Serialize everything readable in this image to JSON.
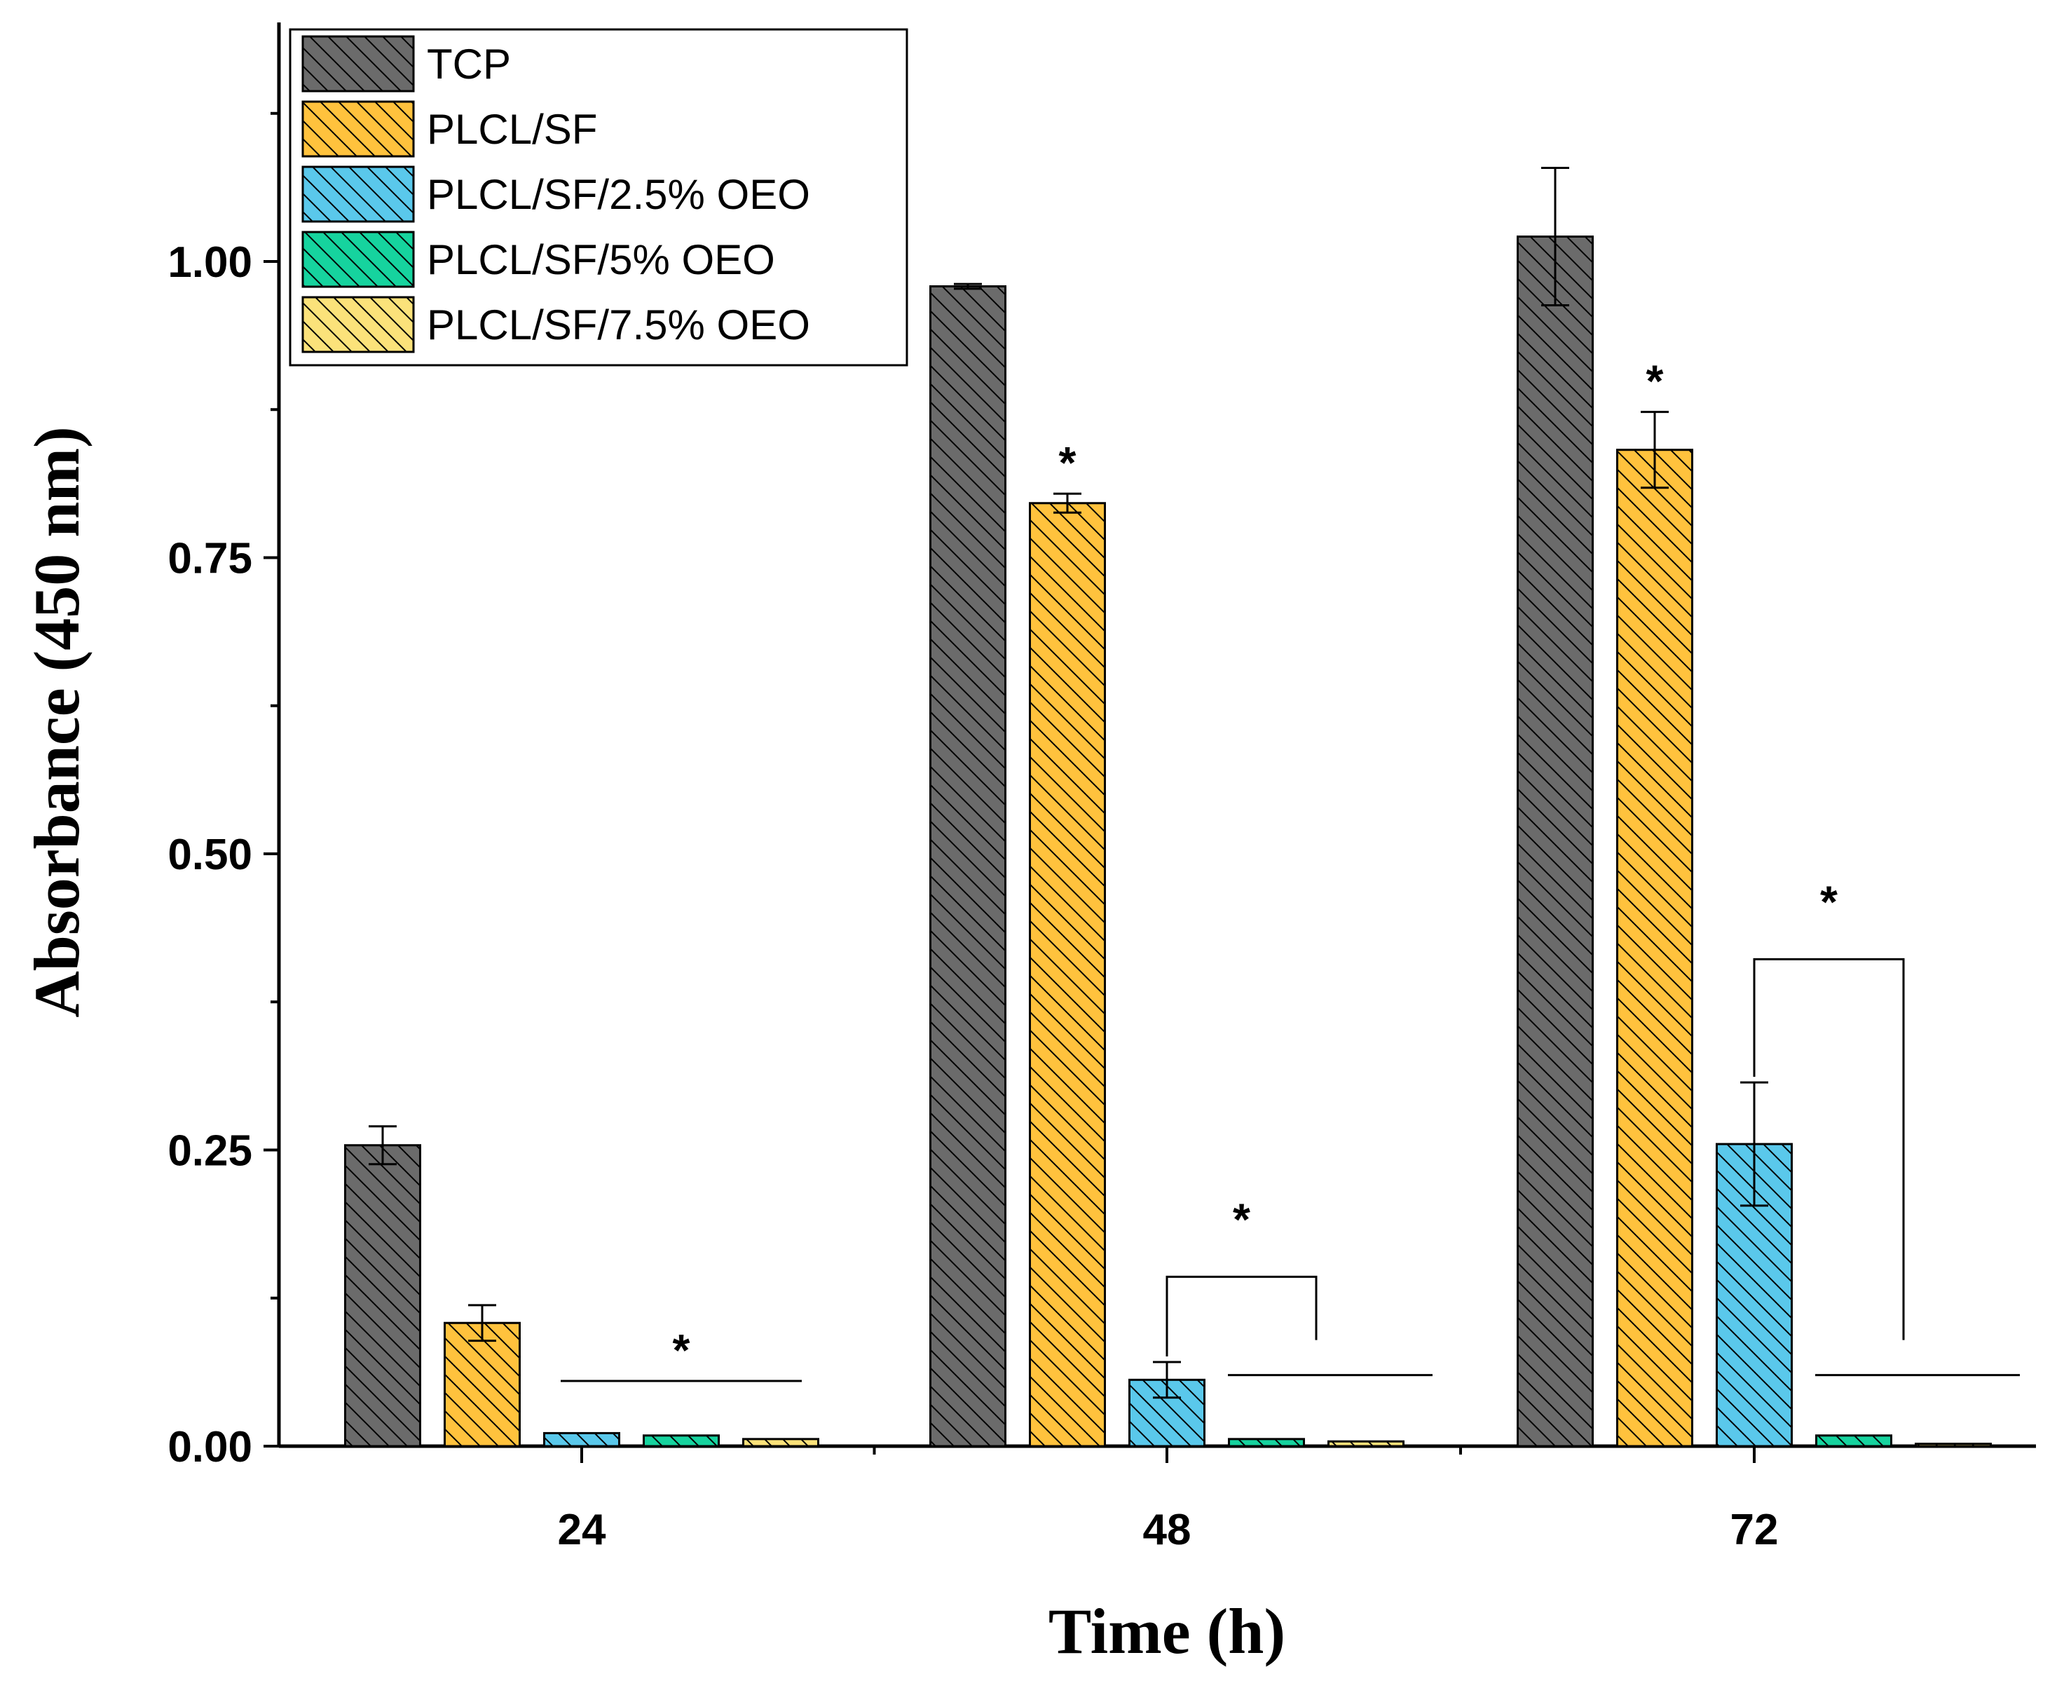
{
  "chart_data": {
    "type": "bar",
    "xlabel": "Time (h)",
    "ylabel": "Absorbance (450 nm)",
    "ylim": [
      0,
      1.2
    ],
    "yticks": [
      "0.00",
      "0.25",
      "0.50",
      "0.75",
      "1.00"
    ],
    "categories": [
      "24",
      "48",
      "72"
    ],
    "legend_position": "top-left",
    "series": [
      {
        "name": "TCP",
        "color": "#6b6b6b",
        "values": [
          0.254,
          0.979,
          1.021
        ],
        "errors": [
          0.016,
          0.002,
          0.058
        ]
      },
      {
        "name": "PLCL/SF",
        "color": "#ffc23d",
        "values": [
          0.104,
          0.796,
          0.841
        ],
        "errors": [
          0.015,
          0.008,
          0.032
        ]
      },
      {
        "name": "PLCL/SF/2.5% OEO",
        "color": "#5ac8eb",
        "values": [
          0.011,
          0.056,
          0.255
        ],
        "errors": [
          0.001,
          0.015,
          0.052
        ]
      },
      {
        "name": "PLCL/SF/5% OEO",
        "color": "#16d39e",
        "values": [
          0.009,
          0.006,
          0.009
        ],
        "errors": [
          0.001,
          0.001,
          0.001
        ]
      },
      {
        "name": "PLCL/SF/7.5% OEO",
        "color": "#fbe27a",
        "values": [
          0.006,
          0.004,
          0.002
        ],
        "errors": [
          0.001,
          0.001,
          0.001
        ]
      }
    ],
    "annotations": {
      "star_symbol": "*",
      "marks": [
        {
          "category": "24",
          "kind": "line",
          "series_from": 2,
          "series_to": 4,
          "level": 0.055
        },
        {
          "category": "48",
          "kind": "single",
          "series": 1
        },
        {
          "category": "48",
          "kind": "bracket",
          "series_from": 2,
          "series_to": 4,
          "level": 0.143
        },
        {
          "category": "72",
          "kind": "single",
          "series": 1
        },
        {
          "category": "72",
          "kind": "bracket",
          "series_from": 2,
          "series_to": 4,
          "level": 0.411
        }
      ]
    }
  }
}
